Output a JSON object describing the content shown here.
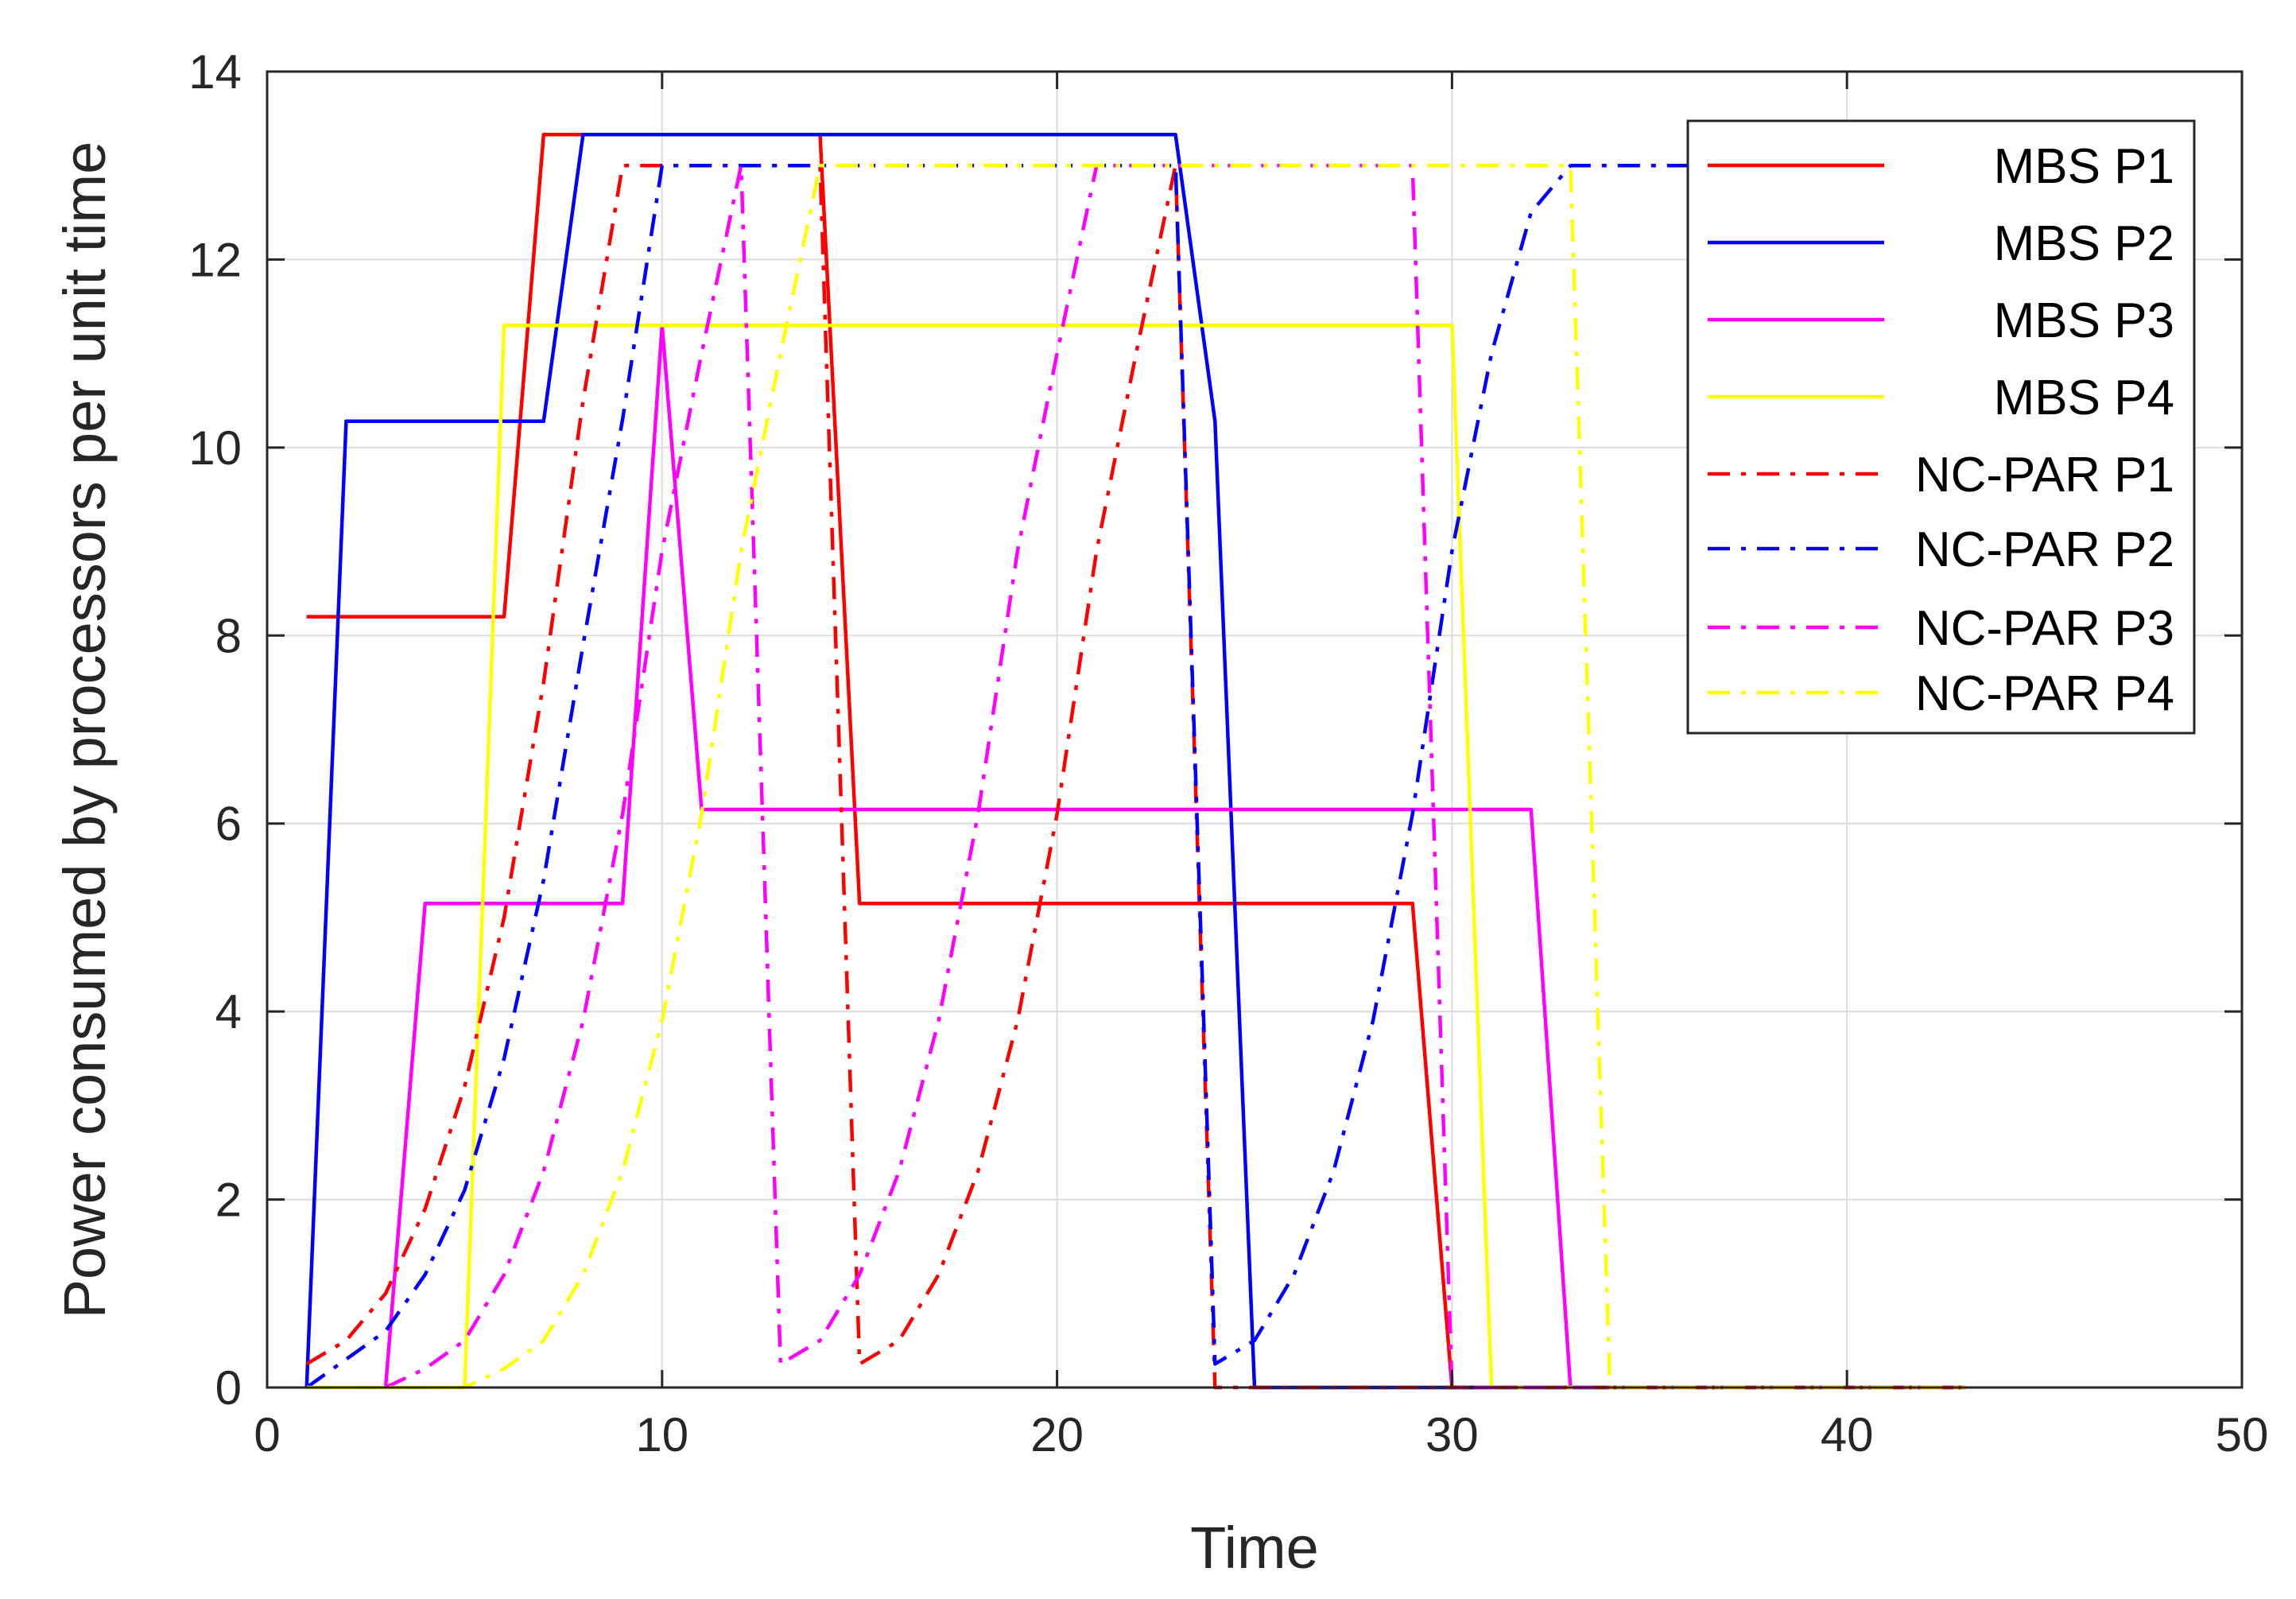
{
  "chart_data": {
    "type": "line",
    "title": "",
    "xlabel": "Time",
    "ylabel": "Power consumed  by processors per unit time",
    "xlim": [
      0,
      50
    ],
    "ylim": [
      0,
      14
    ],
    "xticks": [
      0,
      10,
      20,
      30,
      40,
      50
    ],
    "yticks": [
      0,
      2,
      4,
      6,
      8,
      10,
      12,
      14
    ],
    "grid": true,
    "legend_position": "top-right",
    "series": [
      {
        "name": "MBS P1",
        "color": "#ff0000",
        "style": "solid",
        "x": [
          1,
          6,
          7,
          14,
          15,
          29,
          30,
          43
        ],
        "y": [
          8.2,
          8.2,
          13.33,
          13.33,
          5.15,
          5.15,
          0,
          0
        ]
      },
      {
        "name": "MBS P2",
        "color": "#0000ff",
        "style": "solid",
        "x": [
          1,
          2,
          7,
          8,
          23,
          24,
          25,
          43
        ],
        "y": [
          0,
          10.28,
          10.28,
          13.33,
          13.33,
          10.28,
          0,
          0
        ]
      },
      {
        "name": "MBS P3",
        "color": "#ff00ff",
        "style": "solid",
        "x": [
          3,
          4,
          9,
          10,
          11,
          32,
          33,
          43
        ],
        "y": [
          0,
          5.15,
          5.15,
          11.3,
          6.15,
          6.15,
          0,
          0
        ]
      },
      {
        "name": "MBS P4",
        "color": "#ffff00",
        "style": "solid",
        "x": [
          1,
          5,
          6,
          30,
          31,
          43
        ],
        "y": [
          0,
          0,
          11.3,
          11.3,
          0,
          0
        ]
      },
      {
        "name": "NC-PAR P1",
        "color": "#ff0000",
        "style": "dashdot",
        "x": [
          1,
          2,
          3,
          4,
          5,
          6,
          7,
          8,
          9,
          14,
          15,
          16,
          17,
          18,
          19,
          20,
          21,
          22,
          23,
          24,
          43
        ],
        "y": [
          0.25,
          0.5,
          1.0,
          1.9,
          3.2,
          5.0,
          7.5,
          10.5,
          13.0,
          13.0,
          0.25,
          0.5,
          1.2,
          2.3,
          3.9,
          6.1,
          8.9,
          11.0,
          13.0,
          0,
          0
        ]
      },
      {
        "name": "NC-PAR P2",
        "color": "#0000ff",
        "style": "dashdot",
        "x": [
          1,
          2,
          3,
          4,
          5,
          6,
          7,
          8,
          9,
          10,
          23,
          24,
          25,
          26,
          27,
          28,
          29,
          30,
          31,
          32,
          33,
          36
        ],
        "y": [
          0,
          0.3,
          0.6,
          1.2,
          2.1,
          3.5,
          5.4,
          7.9,
          10.3,
          13.0,
          13.0,
          0.25,
          0.5,
          1.2,
          2.3,
          3.9,
          6.1,
          8.9,
          11.0,
          12.5,
          13.0,
          13.0
        ]
      },
      {
        "name": "NC-PAR P3",
        "color": "#ff00ff",
        "style": "dashdot",
        "x": [
          3,
          4,
          5,
          6,
          7,
          8,
          9,
          10,
          11,
          12,
          13,
          14,
          15,
          16,
          17,
          18,
          19,
          20,
          21,
          29,
          30,
          43
        ],
        "y": [
          0,
          0.2,
          0.5,
          1.2,
          2.3,
          3.9,
          6.1,
          8.9,
          11.0,
          13.0,
          0.25,
          0.5,
          1.2,
          2.3,
          3.9,
          6.1,
          8.9,
          11.0,
          13.0,
          13.0,
          0,
          0
        ]
      },
      {
        "name": "NC-PAR P4",
        "color": "#ffff00",
        "style": "dashdot",
        "x": [
          1,
          5,
          6,
          7,
          8,
          9,
          10,
          11,
          12,
          13,
          14,
          33,
          34,
          43
        ],
        "y": [
          0,
          0,
          0.2,
          0.5,
          1.2,
          2.3,
          3.9,
          6.1,
          8.9,
          11.0,
          13.0,
          13.0,
          0,
          0
        ]
      }
    ]
  }
}
